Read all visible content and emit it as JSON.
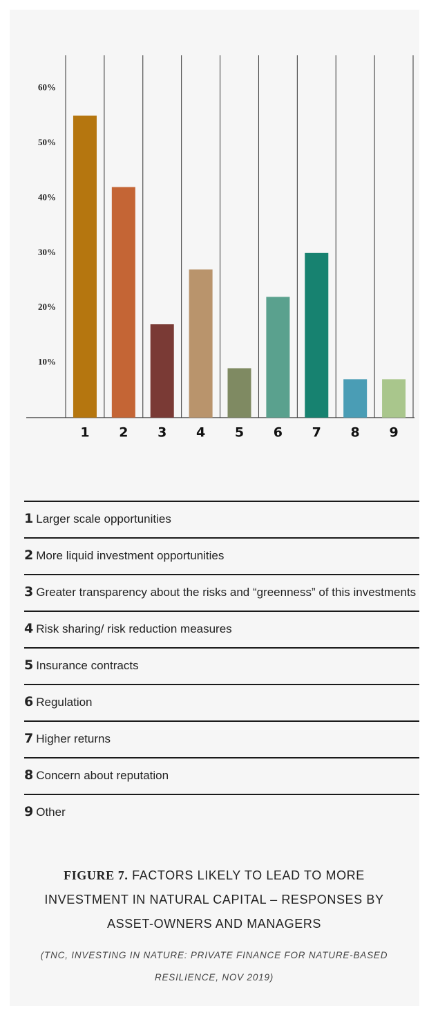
{
  "chart_data": {
    "type": "bar",
    "categories": [
      "1",
      "2",
      "3",
      "4",
      "5",
      "6",
      "7",
      "8",
      "9"
    ],
    "values": [
      55,
      42,
      17,
      27,
      9,
      22,
      30,
      7,
      7
    ],
    "colors": [
      "#b5760f",
      "#c46535",
      "#7a3a35",
      "#b9946c",
      "#7f8a62",
      "#5aa18e",
      "#178270",
      "#4a9db5",
      "#a9c68c"
    ],
    "ylim": [
      0,
      66
    ],
    "yticks": [
      {
        "value": 10,
        "label": "10%"
      },
      {
        "value": 20,
        "label": "20%"
      },
      {
        "value": 30,
        "label": "30%"
      },
      {
        "value": 40,
        "label": "40%"
      },
      {
        "value": 50,
        "label": "50%"
      },
      {
        "value": 60,
        "label": "60%"
      }
    ],
    "legend": [
      "Larger scale opportunities",
      "More liquid investment opportunities",
      "Greater transparency about the risks and “greenness” of this investments",
      "Risk sharing/ risk reduction measures",
      "Insurance contracts",
      "Regulation",
      "Higher returns",
      "Concern about reputation",
      "Other"
    ]
  },
  "figure_label": "FIGURE 7.",
  "caption": "FACTORS LIKELY TO LEAD TO MORE INVESTMENT IN NATURAL CAPITAL – RESPONSES BY ASSET-OWNERS AND MANAGERS",
  "source": "(TNC, INVESTING IN NATURE: PRIVATE FINANCE FOR NATURE-BASED RESILIENCE, NOV 2019)"
}
